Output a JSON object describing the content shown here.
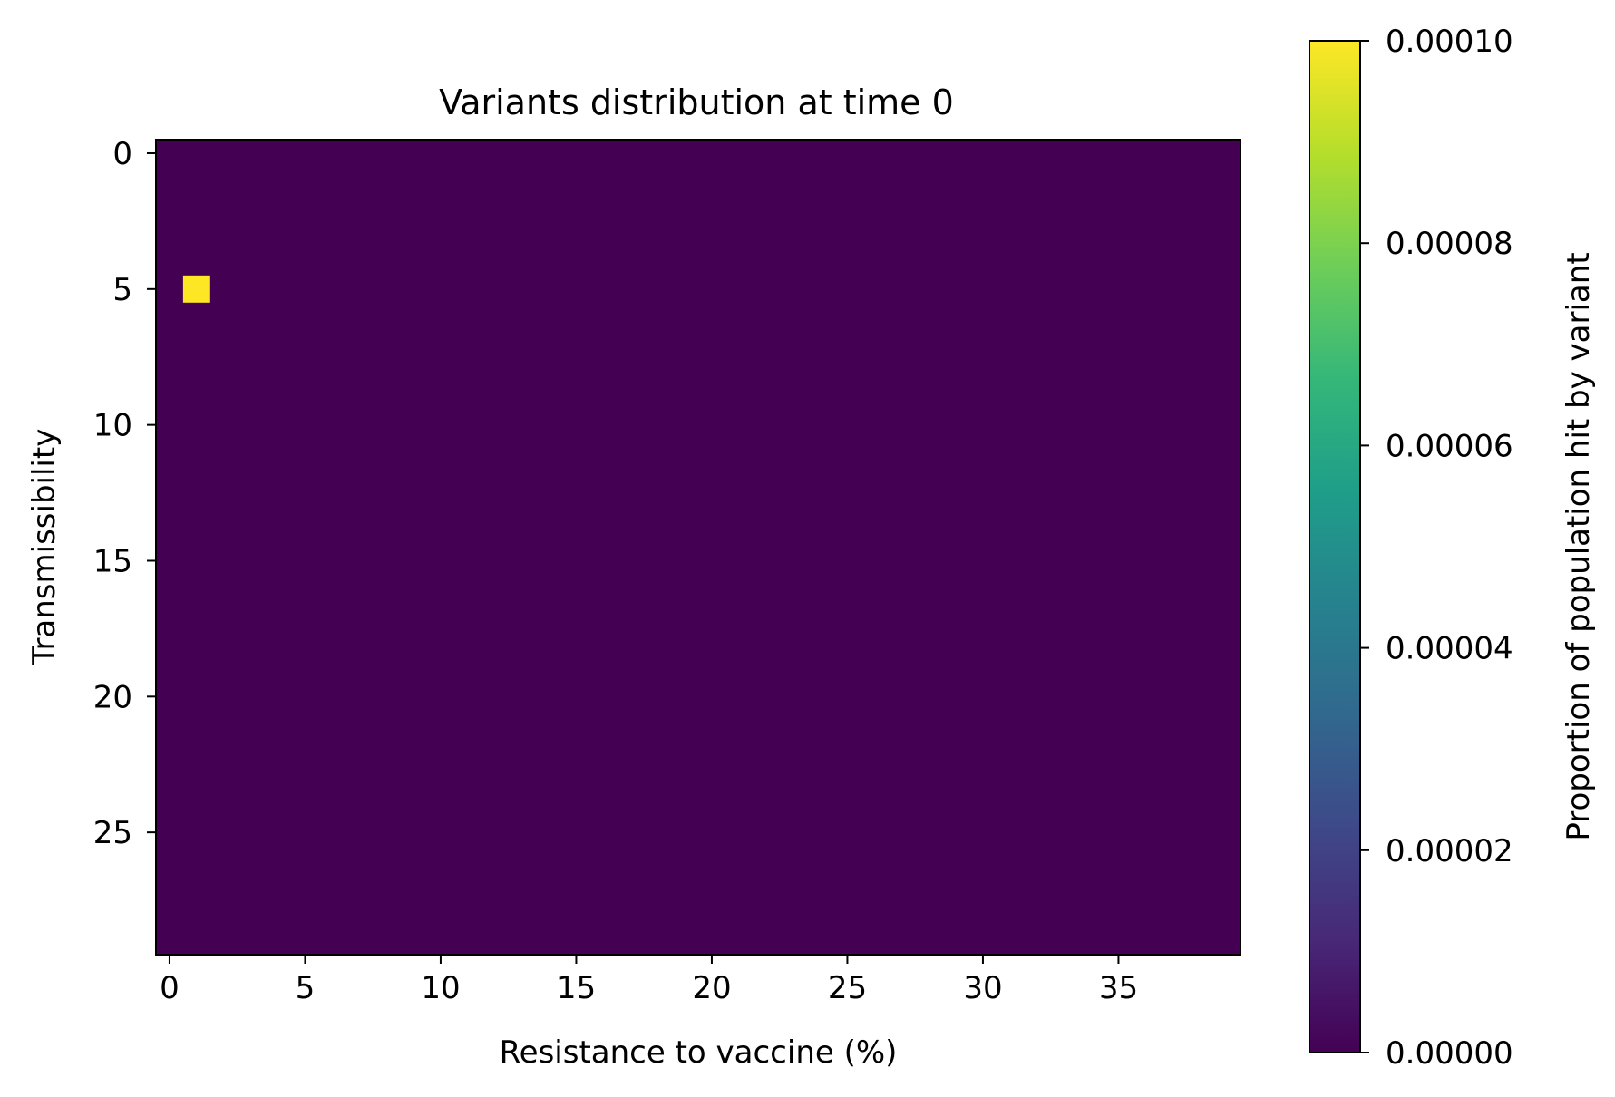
{
  "chart_data": {
    "type": "heatmap",
    "title": "Variants distribution at time 0",
    "xlabel": "Resistance to vaccine (%)",
    "ylabel": "Transmissibility",
    "n_cols": 40,
    "n_rows": 30,
    "x_ticks": [
      0,
      5,
      10,
      15,
      20,
      25,
      30,
      35
    ],
    "y_ticks": [
      0,
      5,
      10,
      15,
      20,
      25
    ],
    "background_value": 0,
    "cells": [
      {
        "x": 1,
        "y": 5,
        "value": 0.0001
      }
    ],
    "colorbar": {
      "label": "Proportion of population hit by variant",
      "min": 0,
      "max": 0.0001,
      "ticks": [
        "0.00000",
        "0.00002",
        "0.00004",
        "0.00006",
        "0.00008",
        "0.00010"
      ],
      "colormap": [
        "#440154",
        "#482878",
        "#3e4989",
        "#31688e",
        "#26828e",
        "#1f9e89",
        "#35b779",
        "#6ece58",
        "#b5de2b",
        "#fde725"
      ]
    },
    "grid": false
  }
}
